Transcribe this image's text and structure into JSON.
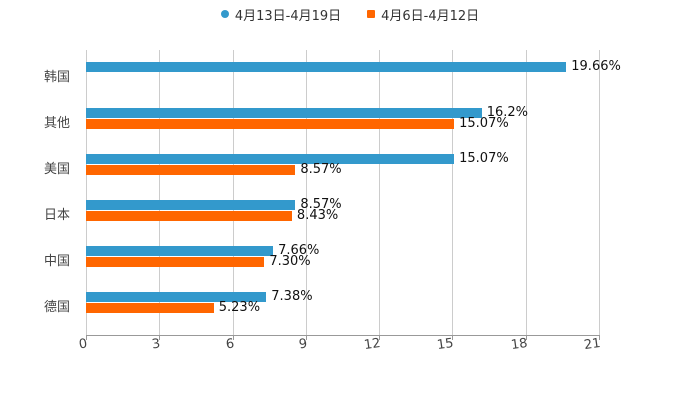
{
  "chart_data": {
    "type": "bar",
    "orientation": "horizontal",
    "title": "",
    "xlabel": "",
    "ylabel": "",
    "xlim": [
      0,
      21
    ],
    "xticks": [
      "0",
      "3",
      "6",
      "9",
      "12",
      "15",
      "18",
      "21"
    ],
    "grid": true,
    "legend_position": "top",
    "categories": [
      "韩国",
      "其他",
      "美国",
      "日本",
      "中国",
      "德国"
    ],
    "series": [
      {
        "name": "4月13日-4月19日",
        "color": "#3399cc",
        "values": [
          19.66,
          16.2,
          15.07,
          8.57,
          7.66,
          7.38
        ],
        "labels": [
          "19.66%",
          "16.2%",
          "15.07%",
          "8.57%",
          "7.66%",
          "7.38%"
        ]
      },
      {
        "name": "4月6日-4月12日",
        "color": "#ff6600",
        "values": [
          null,
          15.07,
          8.57,
          8.43,
          7.3,
          5.23
        ],
        "labels": [
          "",
          "15.07%",
          "8.57%",
          "8.43%",
          "7.30%",
          "5.23%"
        ]
      }
    ]
  },
  "legend": {
    "s1": "4月13日-4月19日",
    "s2": "4月6日-4月12日"
  }
}
